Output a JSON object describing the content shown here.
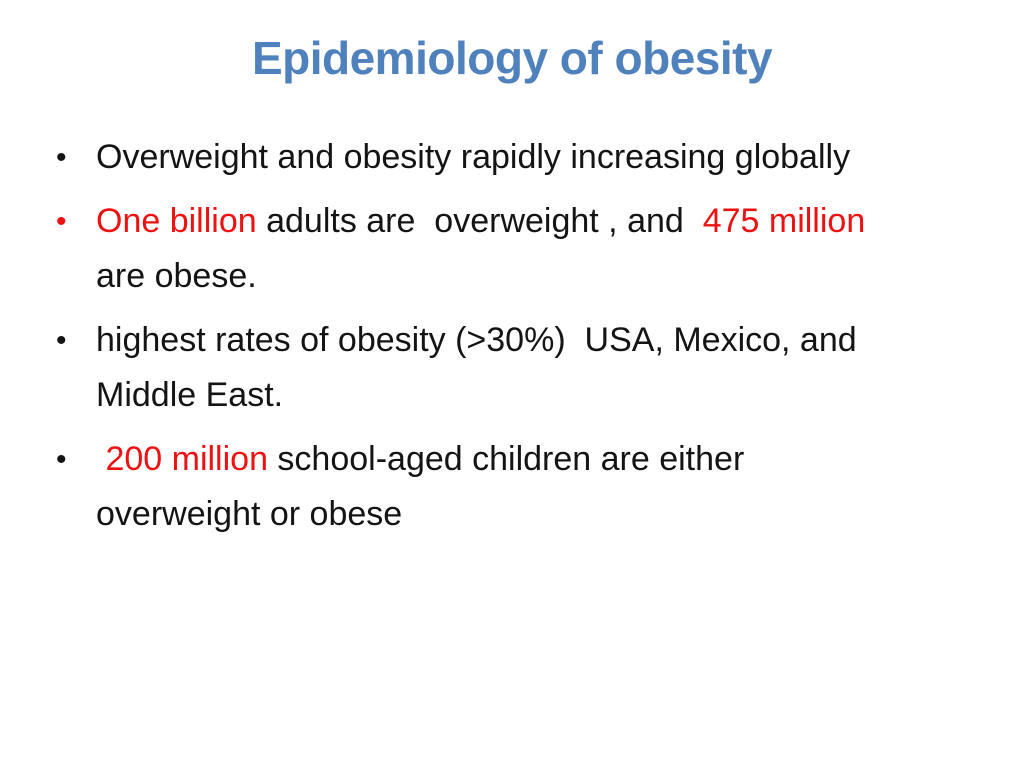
{
  "slide": {
    "title": "Epidemiology of obesity",
    "colors": {
      "background": "#ffffff",
      "title_blue": "#4f81bd",
      "accent_red": "#ee1111",
      "text_black": "#141414"
    },
    "bullets": [
      {
        "marker": "•",
        "marker_color": "black",
        "segments": [
          {
            "text": "Overweight and obesity rapidly increasing globally",
            "color": "black"
          }
        ]
      },
      {
        "marker": "•",
        "marker_color": "red",
        "segments": [
          {
            "text": "One billion",
            "color": "red"
          },
          {
            "text": " adults are  overweight , and  ",
            "color": "black"
          },
          {
            "text": "475 million",
            "color": "red"
          },
          {
            "text": " are obese.",
            "color": "black"
          }
        ]
      },
      {
        "marker": "•",
        "marker_color": "black",
        "segments": [
          {
            "text": "highest rates of obesity (>30%)  USA, Mexico, and  Middle East.",
            "color": "black"
          }
        ]
      },
      {
        "marker": "•",
        "marker_color": "black",
        "segments": [
          {
            "text": " 200 million",
            "color": "red"
          },
          {
            "text": " school-aged children are either overweight or obese",
            "color": "black"
          }
        ]
      }
    ]
  }
}
